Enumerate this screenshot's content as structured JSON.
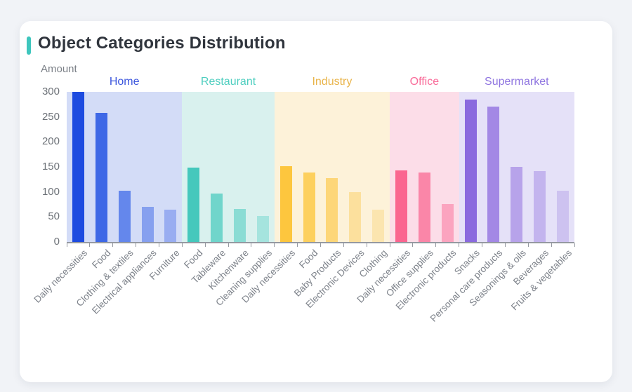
{
  "card": {
    "title": "Object Categories Distribution",
    "accent_color": "#3EC6BD"
  },
  "chart_data": {
    "type": "bar",
    "title": "Object Categories Distribution",
    "xlabel": "",
    "ylabel": "Amount",
    "ylim": [
      0,
      300
    ],
    "yticks": [
      0,
      50,
      100,
      150,
      200,
      250,
      300
    ],
    "grid": false,
    "legend_position": "none",
    "groups": [
      {
        "name": "Home",
        "label_color": "#3b55dd",
        "band_color": "#d3dcf7",
        "bars": [
          {
            "label": "Daily necessities",
            "value": 300,
            "color": "#1d4be0"
          },
          {
            "label": "Food",
            "value": 258,
            "color": "#3e68e6"
          },
          {
            "label": "Clothing & textiles",
            "value": 102,
            "color": "#6487ec"
          },
          {
            "label": "Electrical appliances",
            "value": 70,
            "color": "#86a0ef"
          },
          {
            "label": "Furniture",
            "value": 64,
            "color": "#99adf1"
          }
        ]
      },
      {
        "name": "Restaurant",
        "label_color": "#4ecebf",
        "band_color": "#d9f1ee",
        "bars": [
          {
            "label": "Food",
            "value": 149,
            "color": "#45c8bc"
          },
          {
            "label": "Tableware",
            "value": 97,
            "color": "#70d5cb"
          },
          {
            "label": "Kitchenware",
            "value": 66,
            "color": "#8adcd4"
          },
          {
            "label": "Cleaning supplies",
            "value": 52,
            "color": "#a5e4de"
          }
        ]
      },
      {
        "name": "Industry",
        "label_color": "#e9b44a",
        "band_color": "#fdf2d9",
        "bars": [
          {
            "label": "Daily necessities",
            "value": 151,
            "color": "#fdc63e"
          },
          {
            "label": "Food",
            "value": 139,
            "color": "#fdd05e"
          },
          {
            "label": "Baby Products",
            "value": 127,
            "color": "#fdd678"
          },
          {
            "label": "Electronic Devices",
            "value": 100,
            "color": "#fce09d"
          },
          {
            "label": "Clothing",
            "value": 64,
            "color": "#fbe5af"
          }
        ]
      },
      {
        "name": "Office",
        "label_color": "#f96b99",
        "band_color": "#fcdde8",
        "bars": [
          {
            "label": "Daily necessities",
            "value": 143,
            "color": "#fa6590"
          },
          {
            "label": "Office supplies",
            "value": 139,
            "color": "#fa86a8"
          },
          {
            "label": "Electronic products",
            "value": 76,
            "color": "#fba4bf"
          }
        ]
      },
      {
        "name": "Supermarket",
        "label_color": "#8f75e0",
        "band_color": "#e5e1f8",
        "bars": [
          {
            "label": "Snacks",
            "value": 284,
            "color": "#8a6ade"
          },
          {
            "label": "Personal care products",
            "value": 271,
            "color": "#a388e5"
          },
          {
            "label": "Seasonings & oils",
            "value": 150,
            "color": "#b7a3ea"
          },
          {
            "label": "Beverages",
            "value": 141,
            "color": "#c3b4ee"
          },
          {
            "label": "Fruits & vegetables",
            "value": 102,
            "color": "#cdc2f0"
          }
        ]
      }
    ]
  }
}
